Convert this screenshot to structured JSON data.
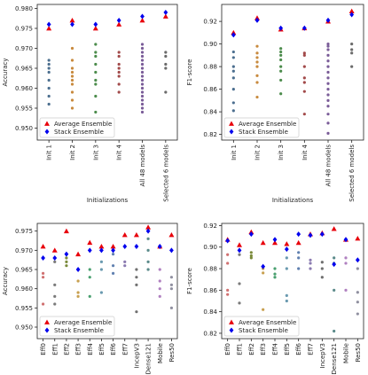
{
  "chart_data": [
    {
      "type": "scatter",
      "ylabel": "Accuracy",
      "xlabel": "Initializations",
      "categories": [
        "Init 1",
        "Init 2",
        "Init 3",
        "Init 4",
        "All 48 models",
        "Selected 6 models"
      ],
      "ylim": [
        0.947,
        0.981
      ],
      "yticks": [
        {
          "value": 0.95,
          "label": "0.950"
        },
        0.955,
        {
          "value": 0.96,
          "label": "0.960"
        },
        0.965,
        {
          "value": 0.97,
          "label": "0.970"
        },
        0.975,
        {
          "value": 0.98,
          "label": "0.980"
        }
      ],
      "legend": "lower left",
      "series": [
        {
          "name": "Average Ensemble",
          "color": "#e8000b",
          "marker": "triangle",
          "values": [
            0.975,
            0.977,
            0.975,
            0.976,
            0.977,
            0.978
          ]
        },
        {
          "name": "Stack Ensemble",
          "color": "#0000ee",
          "marker": "diamond",
          "values": [
            0.976,
            0.976,
            0.976,
            0.977,
            0.978,
            0.979
          ]
        }
      ],
      "models": {
        "colors": [
          "#4c6f8f",
          "#c88a3e",
          "#4c8c4c",
          "#a24a4a",
          "#7a5c98",
          "#6b6b6b"
        ],
        "values": [
          [
            0.967,
            0.966,
            0.965,
            0.964,
            0.962,
            0.96,
            0.958,
            0.956
          ],
          [
            0.97,
            0.967,
            0.965,
            0.964,
            0.963,
            0.962,
            0.961,
            0.959,
            0.957,
            0.955
          ],
          [
            0.971,
            0.969,
            0.968,
            0.966,
            0.964,
            0.962,
            0.961,
            0.958,
            0.954
          ],
          [
            0.969,
            0.968,
            0.966,
            0.965,
            0.964,
            0.963,
            0.961,
            0.959
          ],
          [
            0.971,
            0.97,
            0.969,
            0.968,
            0.967,
            0.966,
            0.965,
            0.964,
            0.963,
            0.962,
            0.961,
            0.96,
            0.959,
            0.958,
            0.957,
            0.956,
            0.955,
            0.954
          ],
          [
            0.969,
            0.968,
            0.966,
            0.965,
            0.959
          ]
        ]
      }
    },
    {
      "type": "scatter",
      "ylabel": "F1-score",
      "xlabel": "Initializations",
      "categories": [
        "Init 1",
        "Init 2",
        "Init 3",
        "Init 4",
        "All 48 models",
        "Selected 6 models"
      ],
      "ylim": [
        0.815,
        0.935
      ],
      "yticks": [
        0.82,
        0.84,
        0.86,
        0.88,
        {
          "value": 0.9,
          "label": "0.90"
        },
        0.92
      ],
      "legend": "lower left",
      "series": [
        {
          "name": "Average Ensemble",
          "color": "#e8000b",
          "marker": "triangle",
          "values": [
            0.91,
            0.923,
            0.913,
            0.914,
            0.92,
            0.929
          ]
        },
        {
          "name": "Stack Ensemble",
          "color": "#0000ee",
          "marker": "diamond",
          "values": [
            0.908,
            0.921,
            0.914,
            0.914,
            0.921,
            0.926
          ]
        }
      ],
      "models": {
        "colors": [
          "#4c6f8f",
          "#c88a3e",
          "#4c8c4c",
          "#a24a4a",
          "#7a5c98",
          "#6b6b6b"
        ],
        "values": [
          [
            0.893,
            0.888,
            0.88,
            0.876,
            0.87,
            0.86,
            0.848,
            0.841
          ],
          [
            0.898,
            0.892,
            0.888,
            0.884,
            0.88,
            0.872,
            0.866,
            0.853
          ],
          [
            0.896,
            0.893,
            0.89,
            0.886,
            0.88,
            0.876,
            0.868,
            0.856
          ],
          [
            0.892,
            0.89,
            0.88,
            0.87,
            0.866,
            0.858,
            0.838
          ],
          [
            0.9,
            0.898,
            0.895,
            0.89,
            0.885,
            0.88,
            0.875,
            0.87,
            0.865,
            0.86,
            0.855,
            0.85,
            0.845,
            0.838,
            0.83,
            0.821
          ],
          [
            0.9,
            0.895,
            0.892,
            0.88
          ]
        ]
      }
    },
    {
      "type": "scatter",
      "ylabel": "Accuracy",
      "categories": [
        "Eff0",
        "Eff1",
        "Eff2",
        "Eff3",
        "Eff4",
        "Eff5",
        "Eff6",
        "Eff7",
        "IncepV3",
        "Dense121",
        "Mobile",
        "Res50"
      ],
      "ylim": [
        0.947,
        0.977
      ],
      "yticks": [
        {
          "value": 0.95,
          "label": "0.950"
        },
        0.955,
        {
          "value": 0.96,
          "label": "0.960"
        },
        0.965,
        {
          "value": 0.97,
          "label": "0.970"
        },
        0.975
      ],
      "legend": "lower left",
      "series": [
        {
          "name": "Average Ensemble",
          "color": "#e8000b",
          "marker": "triangle",
          "values": [
            0.971,
            0.97,
            0.975,
            0.969,
            0.972,
            0.971,
            0.971,
            0.974,
            0.974,
            0.976,
            0.971,
            0.974
          ]
        },
        {
          "name": "Stack Ensemble",
          "color": "#0000ee",
          "marker": "diamond",
          "values": [
            0.968,
            0.968,
            0.969,
            0.965,
            0.97,
            0.97,
            0.97,
            0.971,
            0.971,
            0.975,
            0.971,
            0.97
          ]
        }
      ],
      "models": {
        "colors": [
          "#d07070",
          "#7a7a7a",
          "#7a8a3a",
          "#c8a050",
          "#4aa070",
          "#6a9ab0",
          "#6080b0",
          "#8a7ab0",
          "#707070",
          "#5a8a8a",
          "#b080c0",
          "#9090a0"
        ],
        "values": [
          [
            0.964,
            0.963,
            0.956
          ],
          [
            0.967,
            0.961,
            0.958,
            0.956
          ],
          [
            0.968,
            0.967,
            0.966
          ],
          [
            0.962,
            0.959,
            0.958
          ],
          [
            0.965,
            0.963,
            0.958
          ],
          [
            0.967,
            0.965,
            0.959
          ],
          [
            0.969,
            0.966,
            0.964
          ],
          [
            0.967,
            0.966
          ],
          [
            0.965,
            0.963,
            0.961,
            0.954
          ],
          [
            0.973,
            0.97,
            0.967,
            0.965
          ],
          [
            0.965,
            0.962,
            0.96,
            0.958
          ],
          [
            0.963,
            0.961,
            0.96,
            0.955
          ]
        ]
      }
    },
    {
      "type": "scatter",
      "ylabel": "F1-score",
      "categories": [
        "Eff0",
        "Eff1",
        "Eff2",
        "Eff3",
        "Eff4",
        "Eff5",
        "Eff6",
        "Eff7",
        "IncepV3",
        "Dense121",
        "Mobile",
        "Res50"
      ],
      "ylim": [
        0.815,
        0.922
      ],
      "yticks": [
        0.82,
        0.84,
        0.86,
        0.88,
        {
          "value": 0.9,
          "label": "0.90"
        },
        0.92
      ],
      "legend": "lower left",
      "series": [
        {
          "name": "Average Ensemble",
          "color": "#e8000b",
          "marker": "triangle",
          "values": [
            0.907,
            0.902,
            0.914,
            0.904,
            0.904,
            0.903,
            0.904,
            0.912,
            0.913,
            0.917,
            0.907,
            0.908
          ]
        },
        {
          "name": "Stack Ensemble",
          "color": "#0000ee",
          "marker": "diamond",
          "values": [
            0.906,
            0.897,
            0.912,
            0.882,
            0.907,
            0.898,
            0.912,
            0.911,
            0.912,
            0.884,
            0.907,
            0.888
          ]
        }
      ],
      "models": {
        "colors": [
          "#d07070",
          "#7a7a7a",
          "#7a8a3a",
          "#c8a050",
          "#4aa070",
          "#6a9ab0",
          "#6080b0",
          "#8a7ab0",
          "#707070",
          "#5a8a8a",
          "#b080c0",
          "#9090a0"
        ],
        "values": [
          [
            0.893,
            0.885,
            0.86,
            0.856
          ],
          [
            0.893,
            0.866,
            0.848
          ],
          [
            0.895,
            0.892,
            0.89
          ],
          [
            0.88,
            0.876,
            0.842
          ],
          [
            0.88,
            0.875,
            0.872
          ],
          [
            0.89,
            0.88,
            0.855,
            0.85
          ],
          [
            0.895,
            0.89,
            0.88
          ],
          [
            0.888,
            0.885,
            0.88
          ],
          [
            0.886,
            0.88,
            0.872
          ],
          [
            0.89,
            0.885,
            0.86,
            0.822
          ],
          [
            0.89,
            0.885,
            0.86
          ],
          [
            0.88,
            0.858,
            0.849,
            0.838
          ]
        ]
      }
    }
  ]
}
